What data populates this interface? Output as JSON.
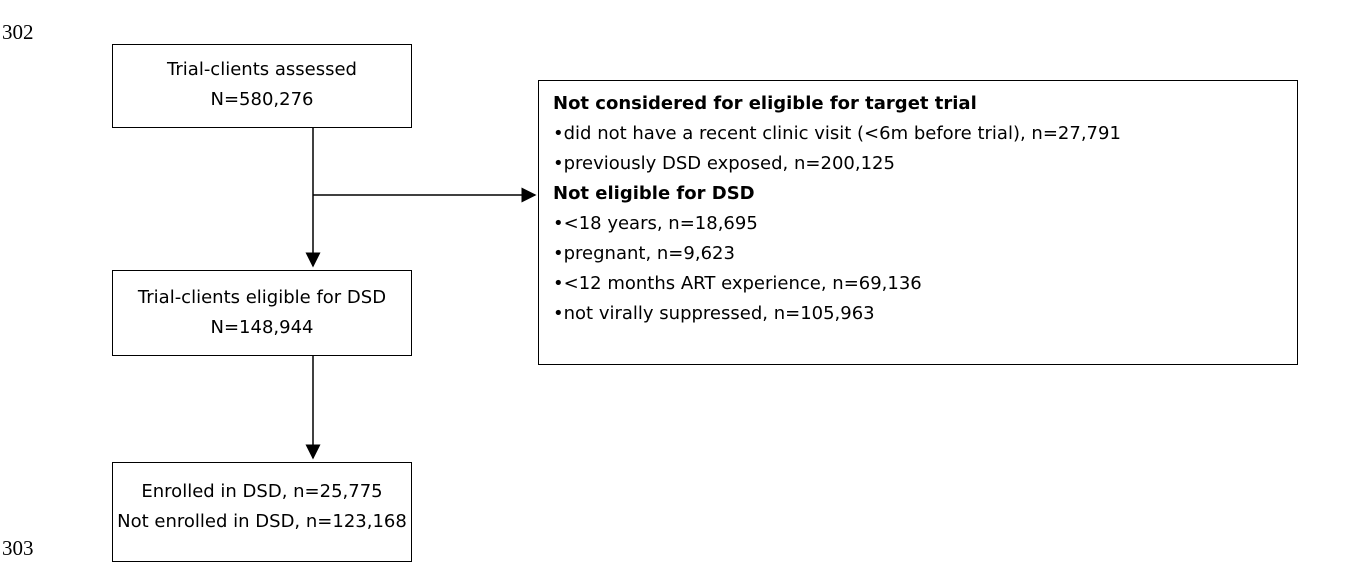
{
  "line_numbers": [
    "302",
    "303"
  ],
  "nodes": [
    {
      "lines": [
        "Trial-clients assessed",
        "N=580,276"
      ]
    },
    {
      "lines": [
        "Trial-clients eligible for DSD",
        "N=148,944"
      ]
    },
    {
      "lines": [
        "Enrolled in DSD, n=25,775",
        "Not enrolled in DSD, n=123,168"
      ]
    }
  ],
  "exclusions": [
    {
      "heading": "Not considered for eligible for target trial",
      "items": [
        "did not have a recent clinic visit (<6m before trial), n=27,791",
        "previously DSD exposed, n=200,125"
      ]
    },
    {
      "heading": "Not eligible for DSD",
      "items": [
        "<18 years, n=18,695",
        "pregnant, n=9,623",
        "<12 months ART experience, n=69,136",
        "not virally suppressed, n=105,963"
      ]
    }
  ]
}
